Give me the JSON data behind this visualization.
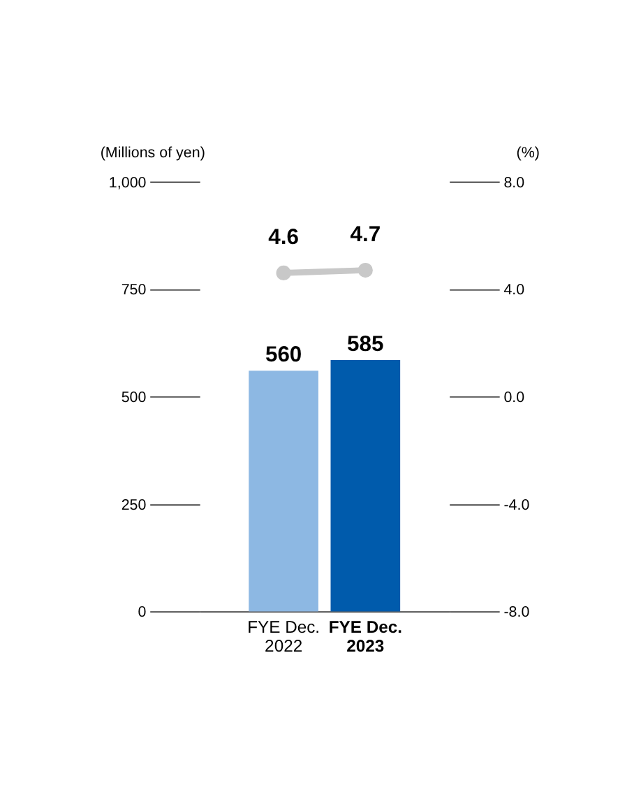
{
  "chart_data": {
    "type": "bar",
    "categories": [
      "FYE Dec. 2022",
      "FYE Dec. 2023"
    ],
    "ylabel": "(Millions of yen)",
    "y2label": "(%)",
    "ylim": [
      0,
      1000
    ],
    "yticks": [
      0,
      {
        "value": 250,
        "label": "250"
      },
      {
        "value": 500,
        "label": "500"
      },
      {
        "value": 750,
        "label": "750"
      },
      {
        "value": 1000,
        "label": "1,000"
      }
    ],
    "y2lim": [
      -8,
      8
    ],
    "y2ticks": [
      {
        "value": -8,
        "label": "-8.0"
      },
      {
        "value": -4,
        "label": "-4.0"
      },
      {
        "value": 0,
        "label": "0.0"
      },
      {
        "value": 4,
        "label": "4.0"
      },
      {
        "value": 8,
        "label": "8.0"
      }
    ],
    "data_labels": true,
    "series": [
      {
        "colors": [
          "#8db8e3",
          "#005bac"
        ],
        "values": [
          560,
          585
        ]
      },
      {
        "type": "line",
        "axis": "y2",
        "color": "#c8c8c8",
        "marker": "circle",
        "values": [
          4.6,
          4.7
        ]
      }
    ]
  }
}
